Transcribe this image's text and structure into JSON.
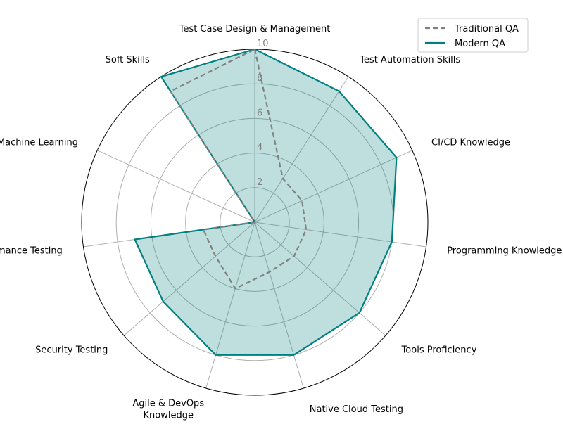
{
  "chart_data": {
    "type": "radar",
    "title": "",
    "categories": [
      "Test Case Design & Management",
      "Test Automation Skills",
      "CI/CD Knowledge",
      "Programming Knowledge",
      "Tools Proficiency",
      "Native Cloud Testing",
      "Agile & DevOps\nKnowledge",
      "Security Testing",
      "Performance Testing",
      "AI & Machine Learning",
      "Soft Skills"
    ],
    "series": [
      {
        "name": "Traditional QA",
        "values": [
          10,
          3,
          3,
          3,
          3,
          3,
          4,
          3,
          3,
          0,
          9
        ],
        "color": "#808080",
        "line_style": "dashed",
        "fill": false
      },
      {
        "name": "Modern QA",
        "values": [
          10,
          9,
          9,
          8,
          8,
          8,
          8,
          7,
          7,
          0,
          10
        ],
        "color": "#008080",
        "line_style": "solid",
        "fill": true,
        "fill_color": "#008080",
        "fill_opacity": 0.25
      }
    ],
    "rlim": [
      0,
      10
    ],
    "rticks": [
      "2",
      "4",
      "6",
      "8",
      "10"
    ],
    "grid": true,
    "legend_position": "top-right"
  }
}
